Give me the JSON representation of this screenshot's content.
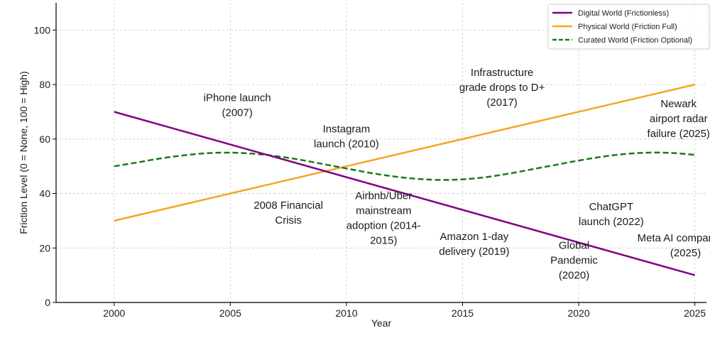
{
  "chart_data": {
    "type": "line",
    "title": "",
    "xlabel": "Year",
    "ylabel": "Friction Level (0 = None, 100 = High)",
    "xlim": [
      1997.5,
      2025.5
    ],
    "ylim": [
      0,
      110
    ],
    "x_ticks": [
      2000,
      2005,
      2010,
      2015,
      2020,
      2025
    ],
    "y_ticks": [
      0,
      20,
      40,
      60,
      80,
      100
    ],
    "grid": true,
    "legend_position": "top-right",
    "series": [
      {
        "name": "Digital World (Frictionless)",
        "color": "#800080",
        "dash": "solid",
        "x": [
          2000,
          2025
        ],
        "values": [
          70,
          10
        ]
      },
      {
        "name": "Physical World (Friction Full)",
        "color": "#f5a623",
        "dash": "solid",
        "x": [
          2000,
          2025
        ],
        "values": [
          30,
          80
        ]
      },
      {
        "name": "Curated World (Friction Optional)",
        "color": "#1a7a1a",
        "dash": "dashed",
        "x": [
          2000,
          2001,
          2002,
          2003,
          2004,
          2005,
          2006,
          2007,
          2008,
          2009,
          2010,
          2011,
          2012,
          2013,
          2014,
          2015,
          2016,
          2017,
          2018,
          2019,
          2020,
          2021,
          2022,
          2023,
          2024,
          2025
        ],
        "values": [
          50,
          51.4,
          52.9,
          54.0,
          54.8,
          55.0,
          54.6,
          53.7,
          52.4,
          50.8,
          49.2,
          47.6,
          46.3,
          45.4,
          45.0,
          45.2,
          46.0,
          47.3,
          48.9,
          50.5,
          52.1,
          53.5,
          54.5,
          55.0,
          54.9,
          54.2
        ]
      }
    ],
    "annotations": [
      {
        "lines": [
          "iPhone launch",
          "(2007)"
        ],
        "x": 2005.3,
        "y": 72.5
      },
      {
        "lines": [
          "Instagram",
          "launch (2010)"
        ],
        "x": 2010.0,
        "y": 61.0
      },
      {
        "lines": [
          "Infrastructure",
          "grade drops to D+",
          "(2017)"
        ],
        "x": 2016.7,
        "y": 79.0
      },
      {
        "lines": [
          "Newark",
          "airport radar",
          "failure (2025)"
        ],
        "x": 2024.3,
        "y": 67.5
      },
      {
        "lines": [
          "2008 Financial",
          "Crisis"
        ],
        "x": 2007.5,
        "y": 33.0
      },
      {
        "lines": [
          "Airbnb/Uber",
          "mainstream",
          "adoption (2014-",
          "2015)"
        ],
        "x": 2011.6,
        "y": 31.0
      },
      {
        "lines": [
          "Amazon 1-day",
          "delivery (2019)"
        ],
        "x": 2015.5,
        "y": 21.5
      },
      {
        "lines": [
          "ChatGPT",
          "launch (2022)"
        ],
        "x": 2021.4,
        "y": 32.5
      },
      {
        "lines": [
          "Global",
          "Pandemic",
          "(2020)"
        ],
        "x": 2019.8,
        "y": 15.5
      },
      {
        "lines": [
          "Meta AI companions",
          "(2025)"
        ],
        "x": 2024.6,
        "y": 21.0
      }
    ]
  }
}
